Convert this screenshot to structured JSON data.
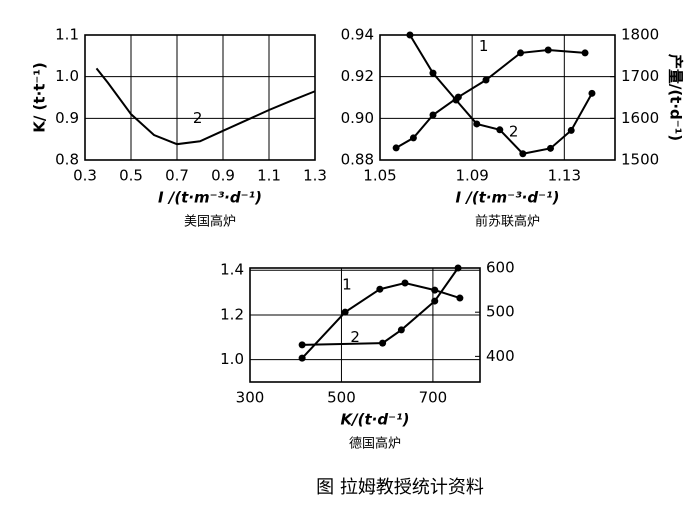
{
  "chart_data": [
    {
      "type": "line",
      "title": "美国高炉",
      "xlabel": "I /(t·m⁻³·d⁻¹)",
      "ylabel": "K/ (t·t⁻¹)",
      "xlim": [
        0.3,
        1.3
      ],
      "xticks": [
        0.3,
        0.5,
        0.7,
        0.9,
        1.1,
        1.3
      ],
      "ylim": [
        0.8,
        1.1
      ],
      "yticks": [
        0.8,
        0.9,
        {
          "value": 1,
          "label": "1.0"
        },
        1.1
      ],
      "grid": true,
      "series": [
        {
          "color": "#000000",
          "axis": "y",
          "markers": false,
          "x": [
            0.35,
            0.4,
            0.5,
            0.6,
            0.7,
            0.8,
            0.9,
            1.0,
            1.1,
            1.2,
            1.3
          ],
          "values": [
            1.02,
            0.985,
            0.91,
            0.86,
            0.838,
            0.845,
            0.87,
            0.895,
            0.92,
            0.943,
            0.965
          ]
        }
      ],
      "annotations": [
        {
          "text": "2",
          "x": 0.79,
          "y": 0.9
        }
      ]
    },
    {
      "type": "line",
      "title": "前苏联高炉",
      "xlabel": "I /(t·m⁻³·d⁻¹)",
      "y2label": "产量/(t·d⁻¹)",
      "xlim": [
        1.05,
        1.152
      ],
      "xticks": [
        1.05,
        1.09,
        1.13
      ],
      "ylim": [
        0.88,
        0.94
      ],
      "yticks": [
        0.88,
        {
          "value": 0.9,
          "label": "0.90"
        },
        0.92,
        0.94
      ],
      "y2lim": [
        1500,
        1800
      ],
      "y2ticks": [
        1500,
        1600,
        1700,
        1800
      ],
      "grid": true,
      "series": [
        {
          "color": "#000000",
          "axis": "y2",
          "markers": true,
          "x": [
            1.057,
            1.0645,
            1.073,
            1.084,
            1.096,
            1.111,
            1.123,
            1.139
          ],
          "values": [
            1529,
            1553,
            1608,
            1651,
            1692,
            1757,
            1764,
            1757
          ]
        },
        {
          "color": "#000000",
          "axis": "y",
          "markers": true,
          "x": [
            1.063,
            1.073,
            1.083,
            1.092,
            1.102,
            1.112,
            1.124,
            1.133,
            1.142
          ],
          "values": [
            0.94,
            0.9217,
            0.9088,
            0.8973,
            0.8945,
            0.883,
            0.8856,
            0.8942,
            0.912
          ]
        }
      ],
      "annotations": [
        {
          "text": "1",
          "x": 1.095,
          "y": 0.9345
        },
        {
          "text": "2",
          "x": 1.108,
          "y": 0.8935
        }
      ]
    },
    {
      "type": "line",
      "title": "德国高炉",
      "xlabel": "K/(t·d⁻¹)",
      "xlim": [
        300,
        803
      ],
      "xticks": [
        300,
        500,
        700
      ],
      "ylim": [
        0.9,
        1.41
      ],
      "yticks": [
        {
          "value": 1,
          "label": "1.0"
        },
        1.2,
        1.4
      ],
      "y2lim": [
        342,
        600
      ],
      "y2ticks": [
        400,
        500,
        600
      ],
      "grid": true,
      "series": [
        {
          "color": "#000000",
          "axis": "y2",
          "markers": true,
          "x": [
            414,
            508,
            584,
            639,
            704,
            759
          ],
          "values": [
            396,
            500,
            552,
            566,
            550,
            532
          ]
        },
        {
          "color": "#000000",
          "axis": "y",
          "markers": true,
          "x": [
            414,
            590,
            631,
            704,
            755
          ],
          "values": [
            1.066,
            1.074,
            1.133,
            1.262,
            1.41
          ]
        }
      ],
      "annotations": [
        {
          "text": "1",
          "x": 512,
          "y": 1.335
        },
        {
          "text": "2",
          "x": 530,
          "y": 1.1
        }
      ]
    }
  ],
  "caption": "图  拉姆教授统计资料"
}
